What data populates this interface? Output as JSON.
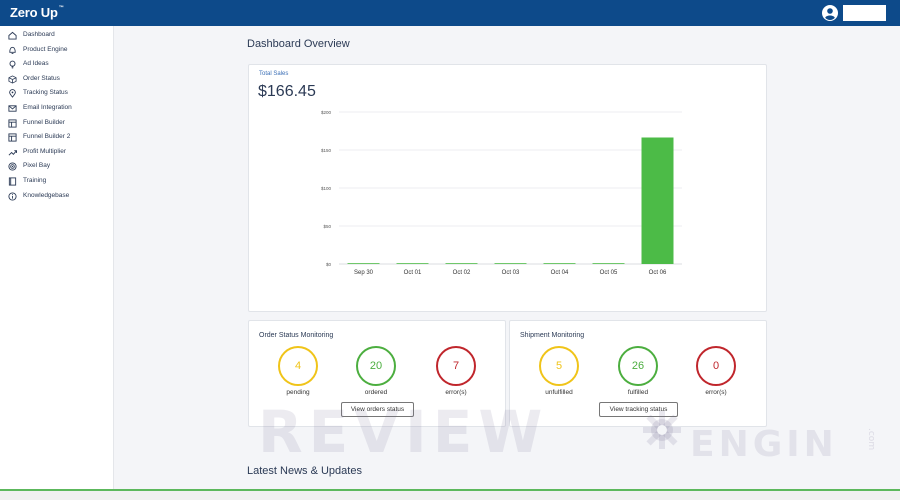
{
  "app": {
    "logo": "Zero Up",
    "logo_mark": "™"
  },
  "sidebar": {
    "items": [
      {
        "label": "Dashboard",
        "icon": "home-icon"
      },
      {
        "label": "Product Engine",
        "icon": "bell-icon"
      },
      {
        "label": "Ad Ideas",
        "icon": "lightbulb-icon"
      },
      {
        "label": "Order Status",
        "icon": "box-icon"
      },
      {
        "label": "Tracking Status",
        "icon": "location-pin-icon"
      },
      {
        "label": "Email Integration",
        "icon": "envelope-icon"
      },
      {
        "label": "Funnel Builder",
        "icon": "layout-icon"
      },
      {
        "label": "Funnel Builder 2",
        "icon": "layout-icon"
      },
      {
        "label": "Profit Multiplier",
        "icon": "trending-up-icon"
      },
      {
        "label": "Pixel Bay",
        "icon": "target-icon"
      },
      {
        "label": "Training",
        "icon": "book-icon"
      },
      {
        "label": "Knowledgebase",
        "icon": "info-icon"
      }
    ]
  },
  "main": {
    "title": "Dashboard Overview",
    "sales": {
      "label": "Total Sales",
      "value": "$166.45"
    },
    "order_monitor": {
      "title": "Order Status Monitoring",
      "stats": [
        {
          "value": "4",
          "label": "pending",
          "color": "#f0c419"
        },
        {
          "value": "20",
          "label": "ordered",
          "color": "#4cae3f"
        },
        {
          "value": "7",
          "label": "error(s)",
          "color": "#c0262c"
        }
      ],
      "button": "View orders status"
    },
    "shipment_monitor": {
      "title": "Shipment Monitoring",
      "stats": [
        {
          "value": "5",
          "label": "unfulfilled",
          "color": "#f0c419"
        },
        {
          "value": "26",
          "label": "fulfilled",
          "color": "#4cae3f"
        },
        {
          "value": "0",
          "label": "error(s)",
          "color": "#c0262c"
        }
      ],
      "button": "View tracking status"
    },
    "news_title": "Latest News & Updates"
  },
  "watermark": {
    "text1": "REVIEW",
    "text2": "ENGIN",
    "text3": ".com"
  },
  "chart_data": {
    "type": "bar",
    "categories": [
      "Sep 30",
      "Oct 01",
      "Oct 02",
      "Oct 03",
      "Oct 04",
      "Oct 05",
      "Oct 06"
    ],
    "values": [
      0,
      0,
      0,
      0,
      0,
      0,
      166.45
    ],
    "ylim": [
      0,
      200
    ],
    "yticks": [
      0,
      50,
      100,
      150,
      200
    ],
    "ytick_labels": [
      "$0",
      "$50",
      "$100",
      "$150",
      "$200"
    ],
    "bar_color": "#4cbb47",
    "grid": true
  }
}
